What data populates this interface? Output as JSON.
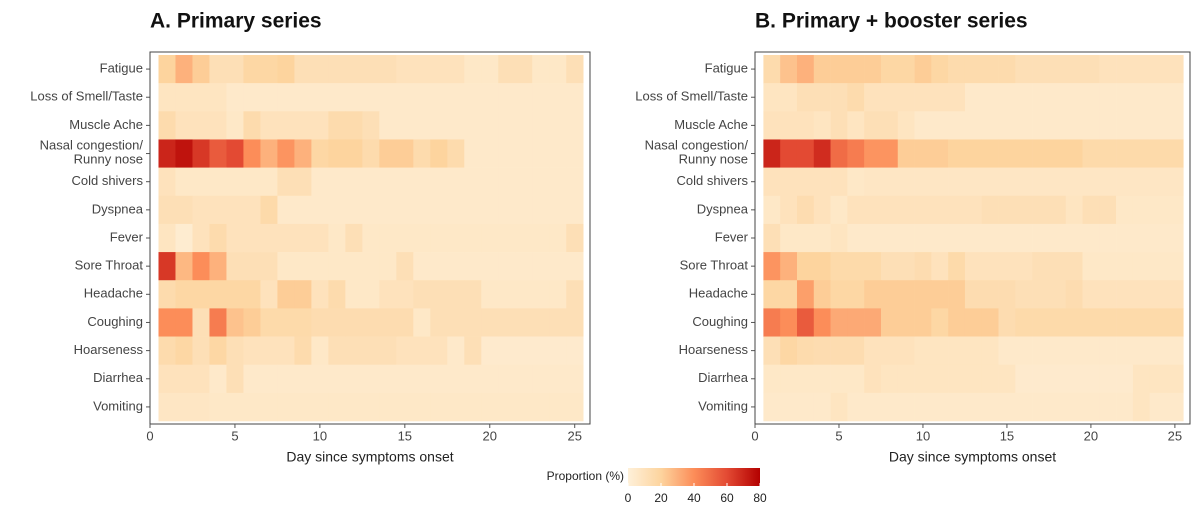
{
  "chart_data": [
    {
      "type": "heatmap",
      "title": "A. Primary series",
      "x_label": "Day since symptoms onset",
      "categories": [
        "Fatigue",
        "Loss of Smell/Taste",
        "Muscle Ache",
        "Nasal congestion/\nRunny nose",
        "Cold shivers",
        "Dyspnea",
        "Fever",
        "Sore Throat",
        "Headache",
        "Coughing",
        "Hoarseness",
        "Diarrhea",
        "Vomiting"
      ],
      "x": [
        1,
        2,
        3,
        4,
        5,
        6,
        7,
        8,
        9,
        10,
        11,
        12,
        13,
        14,
        15,
        16,
        17,
        18,
        19,
        20,
        21,
        22,
        23,
        24,
        25
      ],
      "xlim": [
        0,
        25.9
      ],
      "xticks": [
        0,
        5,
        10,
        15,
        20,
        25
      ],
      "values": [
        [
          20,
          30,
          22,
          12,
          12,
          18,
          18,
          20,
          12,
          12,
          12,
          12,
          12,
          12,
          10,
          10,
          10,
          10,
          6,
          6,
          12,
          12,
          6,
          6,
          12
        ],
        [
          8,
          8,
          8,
          8,
          5,
          5,
          5,
          5,
          5,
          5,
          5,
          5,
          5,
          5,
          5,
          5,
          5,
          5,
          5,
          5,
          5,
          5,
          5,
          5,
          5
        ],
        [
          15,
          10,
          10,
          10,
          6,
          15,
          10,
          10,
          10,
          10,
          15,
          15,
          12,
          5,
          5,
          5,
          5,
          5,
          5,
          5,
          5,
          5,
          5,
          5,
          5
        ],
        [
          70,
          75,
          65,
          55,
          60,
          40,
          30,
          38,
          30,
          18,
          20,
          20,
          15,
          22,
          22,
          15,
          20,
          15,
          5,
          5,
          5,
          5,
          5,
          5,
          5
        ],
        [
          10,
          6,
          6,
          6,
          6,
          6,
          6,
          12,
          12,
          5,
          5,
          5,
          5,
          5,
          5,
          5,
          5,
          5,
          5,
          5,
          5,
          5,
          5,
          5,
          5
        ],
        [
          12,
          12,
          10,
          10,
          10,
          10,
          16,
          5,
          5,
          5,
          5,
          5,
          5,
          5,
          5,
          5,
          5,
          5,
          5,
          5,
          5,
          5,
          5,
          5,
          5
        ],
        [
          8,
          3,
          10,
          15,
          10,
          10,
          10,
          10,
          10,
          10,
          6,
          12,
          6,
          6,
          6,
          6,
          6,
          6,
          6,
          6,
          6,
          6,
          6,
          6,
          12
        ],
        [
          65,
          28,
          40,
          30,
          12,
          12,
          12,
          6,
          6,
          6,
          6,
          6,
          6,
          6,
          12,
          5,
          5,
          5,
          5,
          5,
          5,
          5,
          5,
          5,
          5
        ],
        [
          15,
          18,
          18,
          18,
          18,
          18,
          10,
          22,
          22,
          10,
          15,
          6,
          6,
          10,
          10,
          12,
          12,
          12,
          12,
          6,
          6,
          6,
          6,
          6,
          12
        ],
        [
          40,
          40,
          12,
          45,
          25,
          22,
          16,
          16,
          16,
          14,
          14,
          14,
          14,
          14,
          14,
          6,
          12,
          12,
          12,
          12,
          12,
          12,
          12,
          12,
          12
        ],
        [
          15,
          18,
          12,
          18,
          12,
          10,
          10,
          10,
          15,
          6,
          12,
          12,
          12,
          12,
          10,
          10,
          10,
          5,
          12,
          4,
          4,
          4,
          4,
          4,
          4
        ],
        [
          10,
          10,
          10,
          5,
          12,
          5,
          5,
          5,
          5,
          5,
          5,
          5,
          5,
          5,
          5,
          5,
          5,
          5,
          5,
          5,
          5,
          5,
          5,
          5,
          5
        ],
        [
          7,
          7,
          7,
          6,
          6,
          6,
          6,
          6,
          6,
          6,
          6,
          6,
          6,
          6,
          6,
          6,
          6,
          6,
          6,
          6,
          6,
          6,
          6,
          6,
          6
        ]
      ]
    },
    {
      "type": "heatmap",
      "title": "B. Primary + booster series",
      "x_label": "Day since symptoms onset",
      "categories": [
        "Fatigue",
        "Loss of Smell/Taste",
        "Muscle Ache",
        "Nasal congestion/\nRunny nose",
        "Cold shivers",
        "Dyspnea",
        "Fever",
        "Sore Throat",
        "Headache",
        "Coughing",
        "Hoarseness",
        "Diarrhea",
        "Vomiting"
      ],
      "x": [
        1,
        2,
        3,
        4,
        5,
        6,
        7,
        8,
        9,
        10,
        11,
        12,
        13,
        14,
        15,
        16,
        17,
        18,
        19,
        20,
        21,
        22,
        23,
        24,
        25
      ],
      "xlim": [
        0,
        25.9
      ],
      "xticks": [
        0,
        5,
        10,
        15,
        20,
        25
      ],
      "values": [
        [
          15,
          25,
          30,
          22,
          22,
          22,
          22,
          18,
          18,
          22,
          18,
          15,
          15,
          15,
          15,
          12,
          12,
          12,
          12,
          12,
          10,
          10,
          10,
          10,
          10
        ],
        [
          8,
          8,
          12,
          12,
          12,
          15,
          10,
          10,
          10,
          10,
          10,
          10,
          5,
          5,
          5,
          5,
          5,
          5,
          5,
          5,
          5,
          5,
          5,
          5,
          5
        ],
        [
          10,
          10,
          10,
          8,
          12,
          8,
          12,
          12,
          8,
          5,
          5,
          5,
          5,
          5,
          5,
          5,
          5,
          5,
          5,
          5,
          5,
          5,
          5,
          5,
          5
        ],
        [
          70,
          60,
          60,
          68,
          50,
          45,
          38,
          38,
          22,
          22,
          22,
          20,
          20,
          20,
          20,
          20,
          20,
          20,
          20,
          16,
          16,
          16,
          16,
          16,
          16
        ],
        [
          10,
          10,
          10,
          10,
          10,
          6,
          7,
          7,
          7,
          7,
          7,
          7,
          7,
          7,
          7,
          7,
          7,
          7,
          7,
          7,
          7,
          7,
          7,
          7,
          7
        ],
        [
          6,
          10,
          14,
          10,
          6,
          10,
          10,
          10,
          10,
          10,
          10,
          10,
          10,
          12,
          12,
          12,
          12,
          12,
          8,
          12,
          12,
          6,
          6,
          6,
          6
        ],
        [
          12,
          6,
          6,
          6,
          8,
          5,
          5,
          5,
          5,
          5,
          5,
          5,
          5,
          5,
          5,
          5,
          5,
          5,
          5,
          5,
          5,
          5,
          5,
          5,
          5
        ],
        [
          38,
          30,
          20,
          20,
          16,
          16,
          16,
          12,
          12,
          14,
          10,
          16,
          10,
          10,
          10,
          10,
          12,
          12,
          12,
          6,
          6,
          6,
          6,
          6,
          6
        ],
        [
          18,
          18,
          35,
          22,
          18,
          18,
          22,
          22,
          22,
          22,
          22,
          22,
          14,
          14,
          14,
          12,
          12,
          12,
          14,
          10,
          10,
          10,
          10,
          10,
          10
        ],
        [
          45,
          40,
          55,
          40,
          32,
          32,
          32,
          22,
          22,
          22,
          18,
          22,
          22,
          22,
          14,
          16,
          16,
          16,
          16,
          16,
          16,
          16,
          16,
          16,
          16
        ],
        [
          12,
          18,
          15,
          14,
          14,
          14,
          10,
          10,
          10,
          8,
          8,
          8,
          8,
          8,
          5,
          5,
          5,
          5,
          5,
          5,
          5,
          5,
          5,
          5,
          5
        ],
        [
          6,
          6,
          6,
          6,
          6,
          6,
          10,
          8,
          8,
          8,
          8,
          8,
          8,
          8,
          8,
          4,
          4,
          4,
          4,
          4,
          4,
          4,
          8,
          8,
          8
        ],
        [
          5,
          5,
          5,
          5,
          8,
          5,
          5,
          5,
          5,
          5,
          5,
          5,
          5,
          5,
          5,
          5,
          5,
          5,
          5,
          5,
          5,
          5,
          8,
          5,
          5
        ]
      ]
    }
  ],
  "colorbar": {
    "title": "Proportion (%)",
    "lim": [
      0,
      80
    ],
    "ticks": [
      0,
      20,
      40,
      60,
      80
    ],
    "colors": [
      "#fef0d9",
      "#fdd49e",
      "#fc8d59",
      "#e34a33",
      "#b30000"
    ]
  }
}
